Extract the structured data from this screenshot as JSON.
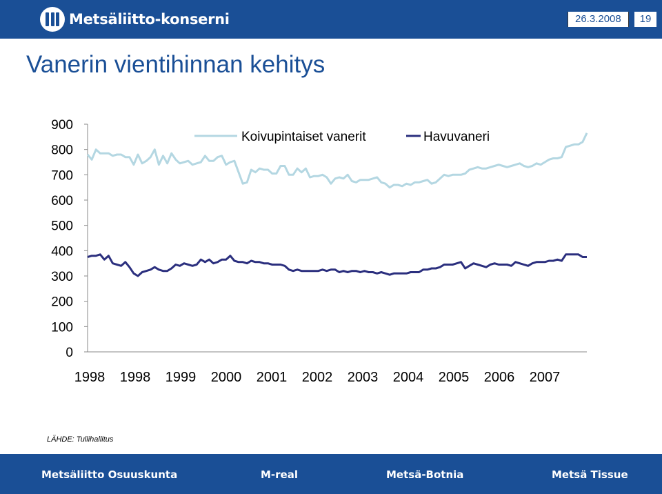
{
  "header": {
    "logo_text": "Metsäliitto-konserni",
    "date": "26.3.2008",
    "page_number": "19"
  },
  "slide": {
    "title": "Vanerin vientihinnan kehitys"
  },
  "source": "LÄHDE: Tullihallitus",
  "footer": {
    "companies": [
      "Metsäliitto Osuuskunta",
      "M-real",
      "Metsä-Botnia",
      "Metsä Tissue"
    ]
  },
  "colors": {
    "brand_blue": "#1a4f96",
    "koivu_series": "#b4d7e2",
    "havu_series": "#2b2f7e"
  },
  "chart_data": {
    "type": "line",
    "ylim": [
      0,
      900
    ],
    "y_ticks": [
      0,
      100,
      200,
      300,
      400,
      500,
      600,
      700,
      800,
      900
    ],
    "x_tick_labels": [
      "1998",
      "1998",
      "1999",
      "2000",
      "2001",
      "2002",
      "2003",
      "2004",
      "2005",
      "2006",
      "2007"
    ],
    "legend_position": "top-center",
    "series": [
      {
        "name": "Koivupintaiset vanerit",
        "color": "#b4d7e2",
        "values": [
          780,
          760,
          800,
          785,
          785,
          785,
          775,
          780,
          780,
          770,
          770,
          740,
          780,
          745,
          755,
          770,
          800,
          740,
          775,
          745,
          785,
          760,
          745,
          750,
          755,
          740,
          745,
          750,
          775,
          755,
          755,
          770,
          775,
          740,
          750,
          755,
          710,
          665,
          670,
          720,
          710,
          725,
          720,
          720,
          705,
          705,
          735,
          735,
          700,
          700,
          725,
          710,
          725,
          690,
          695,
          695,
          700,
          690,
          665,
          685,
          690,
          685,
          700,
          675,
          670,
          680,
          680,
          680,
          685,
          690,
          670,
          665,
          650,
          660,
          660,
          655,
          665,
          660,
          670,
          670,
          675,
          680,
          665,
          670,
          685,
          700,
          695,
          700,
          700,
          700,
          705,
          720,
          725,
          730,
          725,
          725,
          730,
          735,
          740,
          735,
          730,
          735,
          740,
          745,
          735,
          730,
          735,
          745,
          740,
          750,
          760,
          765,
          765,
          770,
          810,
          815,
          820,
          820,
          830,
          865
        ]
      },
      {
        "name": "Havuvaneri",
        "color": "#2b2f7e",
        "values": [
          375,
          380,
          380,
          385,
          365,
          380,
          350,
          345,
          340,
          355,
          335,
          310,
          300,
          315,
          320,
          325,
          335,
          325,
          320,
          320,
          330,
          345,
          340,
          350,
          345,
          340,
          345,
          365,
          355,
          365,
          350,
          355,
          365,
          365,
          380,
          360,
          355,
          355,
          350,
          360,
          355,
          355,
          350,
          350,
          345,
          345,
          345,
          340,
          325,
          320,
          325,
          320,
          320,
          320,
          320,
          320,
          325,
          320,
          325,
          325,
          315,
          320,
          315,
          320,
          320,
          315,
          320,
          315,
          315,
          310,
          315,
          310,
          305,
          310,
          310,
          310,
          310,
          315,
          315,
          315,
          325,
          325,
          330,
          330,
          335,
          345,
          345,
          345,
          350,
          355,
          330,
          340,
          350,
          345,
          340,
          335,
          345,
          350,
          345,
          345,
          345,
          340,
          355,
          350,
          345,
          340,
          350,
          355,
          355,
          355,
          360,
          360,
          365,
          360,
          385,
          385,
          385,
          385,
          375,
          375
        ]
      }
    ]
  }
}
